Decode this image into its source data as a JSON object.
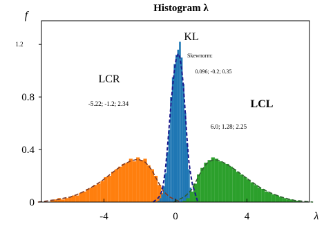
{
  "chart_data": {
    "type": "bar",
    "title": "Histogram λ",
    "xlabel": "λ",
    "ylabel": "f",
    "xlim": [
      -7.5,
      7.5
    ],
    "ylim": [
      0,
      1.38
    ],
    "x_ticks": [
      "-4",
      "0",
      "4"
    ],
    "y_ticks": [
      "0",
      "0.4",
      "0.8",
      "1.2"
    ],
    "grid": false,
    "legend": "none",
    "series": [
      {
        "name": "LCR",
        "color": "#ff7f0e",
        "fit": "Skewnorm",
        "fit_params": {
          "loc": -5.22,
          "scale": -1.2,
          "shape": 2.34
        },
        "label": "LCR",
        "params_label": "-5.22; -1.2; 2.34",
        "bin_width": 0.2,
        "x": [
          -7.1,
          -6.9,
          -6.7,
          -6.5,
          -6.3,
          -6.1,
          -5.9,
          -5.7,
          -5.5,
          -5.3,
          -5.1,
          -4.9,
          -4.7,
          -4.5,
          -4.3,
          -4.1,
          -3.9,
          -3.7,
          -3.5,
          -3.3,
          -3.1,
          -2.9,
          -2.7,
          -2.5,
          -2.3,
          -2.1,
          -1.9,
          -1.7,
          -1.5,
          -1.3,
          -1.1,
          -0.9,
          -0.7,
          -0.5,
          -0.3
        ],
        "values": [
          0.0,
          0.01,
          0.02,
          0.03,
          0.02,
          0.03,
          0.04,
          0.05,
          0.05,
          0.07,
          0.08,
          0.1,
          0.11,
          0.13,
          0.14,
          0.16,
          0.19,
          0.2,
          0.23,
          0.25,
          0.27,
          0.29,
          0.3,
          0.33,
          0.31,
          0.34,
          0.32,
          0.33,
          0.28,
          0.25,
          0.2,
          0.13,
          0.07,
          0.03,
          0.01
        ]
      },
      {
        "name": "KL",
        "color": "#1f77b4",
        "fit": "Skewnorm",
        "fit_params": {
          "loc": 0.096,
          "scale": -0.2,
          "shape": 0.35
        },
        "label": "KL",
        "params_label": "0.096; -0.2; 0.35",
        "bin_width": 0.1,
        "x": [
          -0.95,
          -0.85,
          -0.75,
          -0.65,
          -0.55,
          -0.45,
          -0.35,
          -0.25,
          -0.15,
          -0.05,
          0.05,
          0.15,
          0.25,
          0.35,
          0.45,
          0.55,
          0.65,
          0.75,
          0.85,
          0.95
        ],
        "values": [
          0.01,
          0.03,
          0.06,
          0.12,
          0.22,
          0.38,
          0.55,
          0.8,
          0.95,
          1.05,
          1.12,
          1.16,
          1.22,
          1.1,
          0.9,
          0.68,
          0.45,
          0.25,
          0.11,
          0.04
        ]
      },
      {
        "name": "LCL",
        "color": "#2ca02c",
        "fit": "Skewnorm",
        "fit_params": {
          "loc": 6.0,
          "scale": 1.28,
          "shape": 2.25
        },
        "label": "LCL",
        "params_label": "6.0; 1.28; 2.25",
        "bin_width": 0.2,
        "x": [
          0.5,
          0.7,
          0.9,
          1.1,
          1.3,
          1.5,
          1.7,
          1.9,
          2.1,
          2.3,
          2.5,
          2.7,
          2.9,
          3.1,
          3.3,
          3.5,
          3.7,
          3.9,
          4.1,
          4.3,
          4.5,
          4.7,
          4.9,
          5.1,
          5.3,
          5.5,
          5.7,
          5.9,
          6.1,
          6.3,
          6.5,
          6.7,
          6.9,
          7.1
        ],
        "values": [
          0.01,
          0.03,
          0.08,
          0.14,
          0.21,
          0.26,
          0.3,
          0.32,
          0.34,
          0.33,
          0.31,
          0.3,
          0.29,
          0.27,
          0.25,
          0.23,
          0.21,
          0.19,
          0.17,
          0.15,
          0.13,
          0.11,
          0.1,
          0.08,
          0.07,
          0.06,
          0.05,
          0.04,
          0.03,
          0.02,
          0.02,
          0.01,
          0.01,
          0.0
        ]
      }
    ],
    "annotations": {
      "skewnorm_label": "Skewnorm:"
    }
  }
}
